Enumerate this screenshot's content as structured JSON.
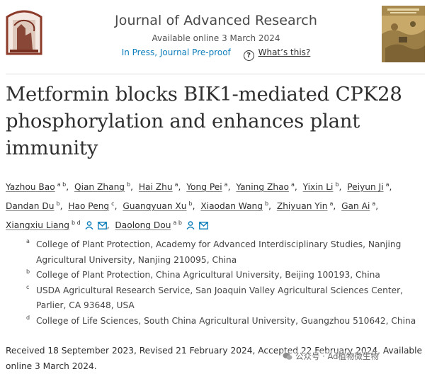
{
  "header": {
    "journal_title": "Journal of Advanced Research",
    "available": "Available online 3 March 2024",
    "status": "In Press, Journal Pre-proof",
    "whats_this": "What’s this?",
    "publisher_logo": "elsevier-tree-logo",
    "cover_image": "journal-cover"
  },
  "article": {
    "title": "Metformin blocks BIK1-mediated CPK28 phosphorylation and enhances plant immunity",
    "authors": [
      {
        "name": "Yazhou Bao",
        "sup": "a b"
      },
      {
        "name": "Qian Zhang",
        "sup": "b"
      },
      {
        "name": "Hai Zhu",
        "sup": "a"
      },
      {
        "name": "Yong Pei",
        "sup": "a"
      },
      {
        "name": "Yaning Zhao",
        "sup": "a"
      },
      {
        "name": "Yixin Li",
        "sup": "b"
      },
      {
        "name": "Peiyun Ji",
        "sup": "a"
      },
      {
        "name": "Dandan Du",
        "sup": "b"
      },
      {
        "name": "Hao Peng",
        "sup": "c"
      },
      {
        "name": "Guangyuan Xu",
        "sup": "b"
      },
      {
        "name": "Xiaodan Wang",
        "sup": "b"
      },
      {
        "name": "Zhiyuan Yin",
        "sup": "a"
      },
      {
        "name": "Gan Ai",
        "sup": "a"
      },
      {
        "name": "Xiangxiu Liang",
        "sup": "b d"
      },
      {
        "name": "Daolong Dou",
        "sup": "a b"
      }
    ],
    "affiliations": [
      {
        "sup": "a",
        "text": "College of Plant Protection, Academy for Advanced Interdisciplinary Studies, Nanjing Agricultural University, Nanjing 210095, China"
      },
      {
        "sup": "b",
        "text": "College of Plant Protection, China Agricultural University, Beijing 100193, China"
      },
      {
        "sup": "c",
        "text": "USDA Agricultural Research Service, San Joaquin Valley Agricultural Sciences Center, Parlier, CA 93648, USA"
      },
      {
        "sup": "d",
        "text": "College of Life Sciences, South China Agricultural University, Guangzhou 510642, China"
      }
    ],
    "history": "Received 18 September 2023, Revised 21 February 2024, Accepted 22 February 2024, Available online 3 March 2024."
  },
  "watermark": {
    "text": "公众号 · Ad植物微生物"
  },
  "colors": {
    "link_blue": "#0c7dbb",
    "text": "#2e2e2e"
  }
}
